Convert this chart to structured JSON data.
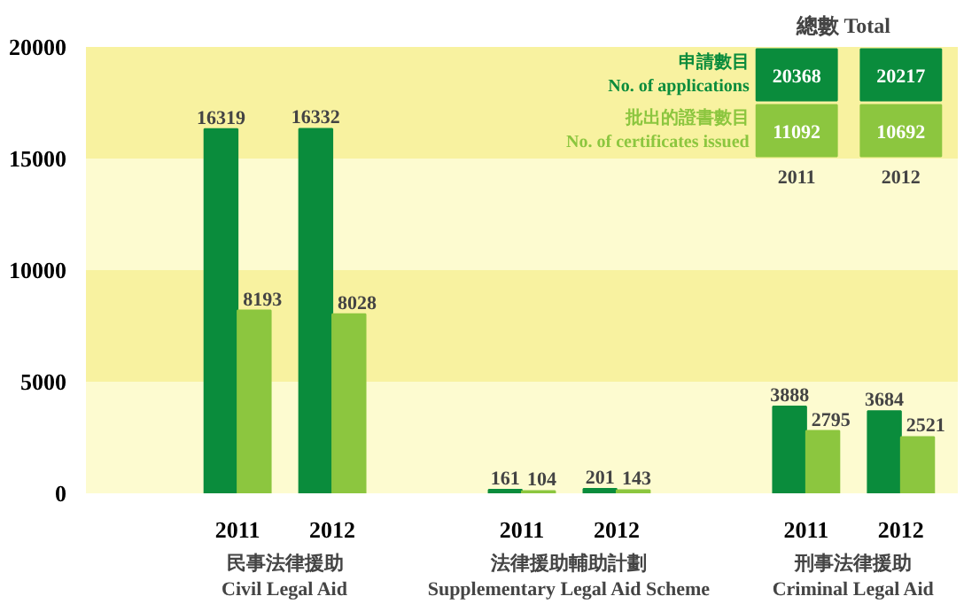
{
  "chart_data": {
    "type": "bar",
    "categories": [
      "2011",
      "2012",
      "2011",
      "2012",
      "2011",
      "2012"
    ],
    "series": [
      {
        "name": "申請數目 No. of applications",
        "color": "#0a8c3c",
        "values": [
          16319,
          16332,
          161,
          201,
          3888,
          3684
        ]
      },
      {
        "name": "批出的證書數目 No. of certificates issued",
        "color": "#8cc63f",
        "values": [
          8193,
          8028,
          104,
          143,
          2795,
          2521
        ]
      }
    ],
    "ylim": [
      0,
      20000
    ],
    "yticks": [
      0,
      5000,
      10000,
      15000,
      20000
    ],
    "data_labels": true,
    "legend": "top right",
    "bands": [
      {
        "axis": "y",
        "from": 0,
        "to": 5000,
        "color": "#fdfbd0"
      },
      {
        "axis": "y",
        "from": 5000,
        "to": 10000,
        "color": "#f8f2a0"
      },
      {
        "axis": "y",
        "from": 10000,
        "to": 15000,
        "color": "#fdfbd0"
      },
      {
        "axis": "y",
        "from": 15000,
        "to": 20000,
        "color": "#f8f2a0"
      }
    ],
    "annotations": [
      "民事法律援助\nCivil Legal Aid",
      "法律援助輔助計劃\nSupplementary Legal Aid Scheme",
      "刑事法律援助\nCriminal Legal Aid",
      "總數 Total",
      "20368",
      "20217",
      "11092",
      "10692",
      "2011",
      "2012"
    ]
  }
}
